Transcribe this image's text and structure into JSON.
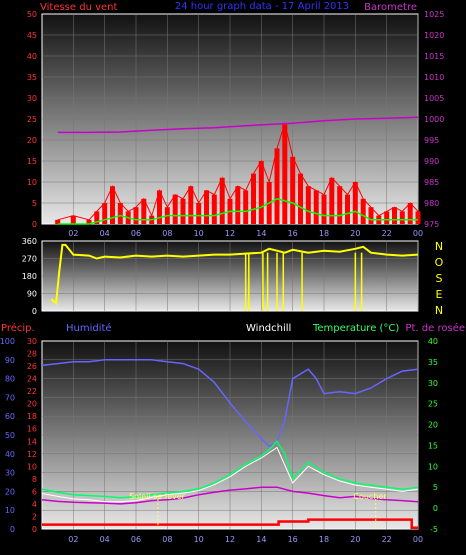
{
  "colors": {
    "wind": "#ff0000",
    "gust_base": "#00ff00",
    "baro": "#cc00cc",
    "dir": "#ffff00",
    "humidity": "#6666ff",
    "temperature": "#00ff66",
    "dewpoint": "#cc00cc",
    "windchill": "#ffffff",
    "precip": "#ff0000",
    "sun": "#ffff66",
    "axis_left": "#ff3333",
    "axis_right": "#cc33cc",
    "axis_hum": "#6666ff",
    "axis_temp": "#33ff33",
    "x_ticks": "#9999ff"
  },
  "chart_data": [
    {
      "type": "line",
      "title": "24 hour graph data - 17 April 2013",
      "labels": {
        "wind": "Vitesse du vent",
        "baro": "Barometre"
      },
      "x_ticks": [
        "02",
        "04",
        "06",
        "08",
        "10",
        "12",
        "14",
        "16",
        "18",
        "20",
        "22",
        "00"
      ],
      "y_left_ticks": [
        "0",
        "5",
        "10",
        "15",
        "20",
        "25",
        "30",
        "35",
        "40",
        "45",
        "50"
      ],
      "y_left_range": [
        0,
        50
      ],
      "y_right_ticks": [
        "975",
        "980",
        "985",
        "990",
        "995",
        "1000",
        "1005",
        "1010",
        "1015",
        "1020",
        "1025"
      ],
      "y_right_range": [
        975,
        1025
      ],
      "series": [
        {
          "name": "Barometre",
          "x": [
            1,
            3,
            5,
            7,
            9,
            11,
            13,
            14,
            15,
            16,
            18,
            20,
            22,
            24
          ],
          "values": [
            996.8,
            996.8,
            996.9,
            997.3,
            997.7,
            997.9,
            998.4,
            998.6,
            998.8,
            999.0,
            999.6,
            1000.0,
            1000.2,
            1000.4
          ]
        },
        {
          "name": "Vitesse du vent",
          "x": [
            1,
            2,
            3,
            3.5,
            4,
            4.5,
            5,
            5.5,
            6,
            6.5,
            7,
            7.5,
            8,
            8.5,
            9,
            9.5,
            10,
            10.5,
            11,
            11.5,
            12,
            12.5,
            13,
            13.5,
            14,
            14.5,
            15,
            15.5,
            16,
            16.5,
            17,
            17.5,
            18,
            18.5,
            19,
            19.5,
            20,
            20.5,
            21,
            21.5,
            22,
            22.5,
            23,
            23.5,
            24
          ],
          "values": [
            1,
            2,
            1,
            3,
            5,
            9,
            5,
            3,
            4,
            6,
            2,
            8,
            4,
            7,
            6,
            9,
            5,
            8,
            7,
            11,
            6,
            9,
            8,
            12,
            15,
            10,
            18,
            24,
            16,
            12,
            9,
            8,
            7,
            11,
            9,
            7,
            10,
            6,
            4,
            2,
            3,
            4,
            3,
            5,
            3
          ]
        },
        {
          "name": "gust",
          "x": [
            1,
            3,
            4,
            5,
            6,
            7,
            8,
            9,
            10,
            11,
            12,
            13,
            14,
            15,
            16,
            17,
            18,
            19,
            20,
            21,
            22,
            23,
            24
          ],
          "values": [
            0,
            0,
            1,
            2,
            1,
            1,
            2,
            2,
            2,
            2,
            3,
            3,
            4,
            6,
            5,
            3,
            2,
            2,
            3,
            1,
            1,
            1,
            1
          ]
        }
      ]
    },
    {
      "type": "scatter",
      "labels": {
        "dir": "NOSEN"
      },
      "y_ticks": [
        "360",
        "270",
        "180",
        "90",
        "0"
      ],
      "y_range": [
        0,
        360
      ],
      "series": [
        {
          "name": "Direction",
          "x": [
            0.6,
            0.9,
            1.1,
            1.3,
            1.5,
            2,
            3,
            3.5,
            4,
            5,
            6,
            7,
            8,
            9,
            10,
            11,
            12,
            13,
            14,
            14.5,
            15,
            15.5,
            16,
            17,
            18,
            19,
            20,
            20.5,
            21,
            22,
            23,
            24
          ],
          "values": [
            60,
            40,
            200,
            340,
            340,
            290,
            285,
            270,
            280,
            275,
            285,
            280,
            285,
            280,
            285,
            290,
            290,
            295,
            300,
            320,
            310,
            300,
            315,
            300,
            310,
            305,
            320,
            330,
            300,
            290,
            285,
            290
          ]
        }
      ]
    },
    {
      "type": "line",
      "labels": {
        "precip": "Précip.",
        "humidity": "Humidité",
        "windchill": "Windchill",
        "temperature": "Temperature (°C)",
        "dewpoint": "Pt. de rosée",
        "sunrise": "Soleil se lever",
        "sunset": "Coucher"
      },
      "x_ticks": [
        "02",
        "04",
        "06",
        "08",
        "10",
        "12",
        "14",
        "16",
        "18",
        "20",
        "22",
        "00"
      ],
      "y_hum_ticks": [
        "0",
        "10",
        "20",
        "30",
        "40",
        "50",
        "60",
        "70",
        "80",
        "90",
        "100"
      ],
      "y_hum_range": [
        0,
        100
      ],
      "y_precip_ticks": [
        "0",
        "2",
        "4",
        "6",
        "8",
        "10",
        "12",
        "14",
        "16",
        "18",
        "20",
        "22",
        "24",
        "26",
        "28",
        "30"
      ],
      "y_precip_range": [
        0,
        30
      ],
      "y_temp_ticks": [
        "-5",
        "0",
        "5",
        "10",
        "15",
        "20",
        "25",
        "30",
        "35",
        "40"
      ],
      "y_temp_range": [
        -5,
        40
      ],
      "sunrise_x": 7.4,
      "sunset_x": 21.3,
      "series": [
        {
          "name": "Humidité",
          "x": [
            0,
            1,
            2,
            3,
            4,
            5,
            6,
            7,
            8,
            9,
            10,
            11,
            12,
            13,
            14,
            14.5,
            15,
            15.5,
            16,
            17,
            17.5,
            18,
            19,
            20,
            21,
            22,
            23,
            24
          ],
          "values": [
            87,
            88,
            89,
            89,
            90,
            90,
            90,
            90,
            89,
            88,
            85,
            78,
            67,
            57,
            48,
            44,
            46,
            58,
            80,
            85,
            80,
            72,
            73,
            72,
            75,
            80,
            84,
            85
          ]
        },
        {
          "name": "Temperature (°C)",
          "x": [
            0,
            1,
            2,
            3,
            4,
            5,
            6,
            7,
            8,
            9,
            10,
            11,
            12,
            13,
            14,
            14.5,
            15,
            15.5,
            16,
            17,
            18,
            19,
            20,
            21,
            22,
            23,
            24
          ],
          "values": [
            4.5,
            3.8,
            3.2,
            3.0,
            2.8,
            2.5,
            2.7,
            3.2,
            3.6,
            4.0,
            4.6,
            6,
            8,
            10.5,
            12.5,
            14,
            16,
            13,
            7,
            11,
            8.5,
            7,
            6,
            5.5,
            5,
            4.5,
            5
          ]
        },
        {
          "name": "Pt. de rosée",
          "x": [
            0,
            1,
            2,
            3,
            4,
            5,
            6,
            7,
            8,
            9,
            10,
            11,
            12,
            13,
            14,
            15,
            16,
            17,
            18,
            19,
            20,
            21,
            22,
            23,
            24
          ],
          "values": [
            2,
            1.6,
            1.4,
            1.3,
            1.2,
            1.0,
            1.3,
            1.8,
            2.0,
            2.4,
            3.2,
            3.8,
            4.3,
            4.6,
            5.0,
            5.0,
            4.0,
            3.6,
            3.0,
            2.5,
            2.8,
            2.3,
            2.0,
            1.8,
            1.5
          ]
        },
        {
          "name": "Windchill",
          "x": [
            0,
            1,
            2,
            3,
            4,
            5,
            6,
            7,
            8,
            9,
            10,
            11,
            12,
            13,
            14,
            15,
            16,
            17,
            18,
            19,
            20,
            21,
            22,
            23,
            24
          ],
          "values": [
            3.5,
            2.8,
            2.2,
            2.0,
            1.5,
            1.5,
            1.8,
            2.6,
            3.2,
            3.6,
            4.2,
            5.6,
            7.5,
            10,
            12,
            14.5,
            6,
            10,
            8,
            6.5,
            5.5,
            5,
            4.5,
            4,
            4.5
          ]
        },
        {
          "name": "Précip.",
          "x": [
            0,
            15.1,
            15.1,
            17,
            17,
            23.6,
            23.6,
            24
          ],
          "values": [
            0.7,
            0.7,
            1.2,
            1.2,
            1.5,
            1.5,
            0.2,
            0.2
          ]
        }
      ]
    }
  ]
}
